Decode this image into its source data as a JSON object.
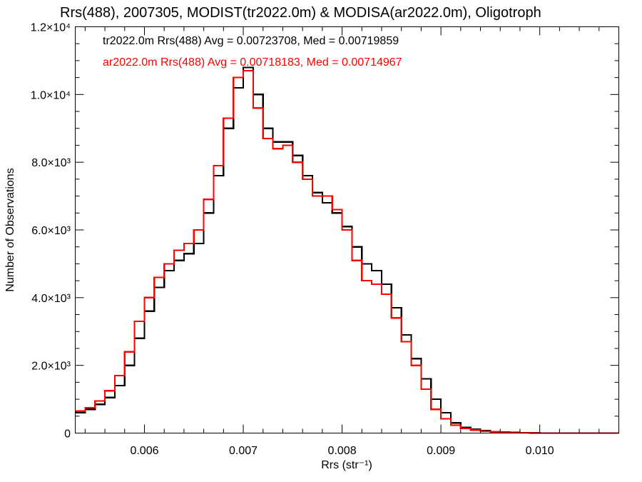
{
  "chart_data": {
    "type": "line",
    "title": "Rrs(488), 2007305, MODIST(tr2022.0m) & MODISA(ar2022.0m), Oligotroph",
    "xlabel": "Rrs (str⁻¹)",
    "ylabel": "Number of Observations",
    "xlim": [
      0.0053,
      0.0108
    ],
    "ylim": [
      0,
      12000
    ],
    "grid": false,
    "x_ticks": [
      {
        "value": 0.006,
        "label": "0.006"
      },
      {
        "value": 0.007,
        "label": "0.007"
      },
      {
        "value": 0.008,
        "label": "0.008"
      },
      {
        "value": 0.009,
        "label": "0.009"
      },
      {
        "value": 0.01,
        "label": "0.010"
      }
    ],
    "y_ticks": [
      {
        "value": 0,
        "label": "0"
      },
      {
        "value": 2000,
        "label": "2.0×10³"
      },
      {
        "value": 4000,
        "label": "4.0×10³"
      },
      {
        "value": 6000,
        "label": "6.0×10³"
      },
      {
        "value": 8000,
        "label": "8.0×10³"
      },
      {
        "value": 10000,
        "label": "1.0×10⁴"
      },
      {
        "value": 12000,
        "label": "1.2×10⁴"
      }
    ],
    "annotations": [
      {
        "text": "tr2022.0m Rrs(488) Avg = 0.00723708, Med = 0.00719859",
        "color": "#000000"
      },
      {
        "text": "ar2022.0m Rrs(488) Avg = 0.00718183, Med = 0.00714967",
        "color": "#ff0000"
      }
    ],
    "series": [
      {
        "color": "#000000",
        "x": [
          0.0053,
          0.0054,
          0.0055,
          0.0056,
          0.0057,
          0.0058,
          0.0059,
          0.006,
          0.0061,
          0.0062,
          0.0063,
          0.0064,
          0.0065,
          0.0066,
          0.0067,
          0.0068,
          0.0069,
          0.007,
          0.0071,
          0.0072,
          0.0073,
          0.0074,
          0.0075,
          0.0076,
          0.0077,
          0.0078,
          0.0079,
          0.008,
          0.0081,
          0.0082,
          0.0083,
          0.0084,
          0.0085,
          0.0086,
          0.0087,
          0.0088,
          0.0089,
          0.009,
          0.0091,
          0.0092,
          0.0093,
          0.0094,
          0.0095,
          0.0096,
          0.0097,
          0.0098,
          0.0099,
          0.01,
          0.0101,
          0.0102,
          0.0103,
          0.0104,
          0.0105,
          0.0106,
          0.0107,
          0.0108
        ],
        "y": [
          600,
          700,
          850,
          1050,
          1400,
          2000,
          2800,
          3600,
          4300,
          4800,
          5100,
          5300,
          5600,
          6500,
          7600,
          9000,
          10200,
          10800,
          10000,
          9000,
          8600,
          8600,
          8200,
          7600,
          7100,
          6800,
          6500,
          6100,
          5500,
          5000,
          4800,
          4400,
          3700,
          2900,
          2200,
          1600,
          1000,
          600,
          300,
          170,
          110,
          70,
          40,
          25,
          15,
          10,
          5,
          3,
          2,
          1,
          1,
          0,
          0,
          0,
          0,
          0
        ]
      },
      {
        "color": "#ff0000",
        "x": [
          0.0053,
          0.0054,
          0.0055,
          0.0056,
          0.0057,
          0.0058,
          0.0059,
          0.006,
          0.0061,
          0.0062,
          0.0063,
          0.0064,
          0.0065,
          0.0066,
          0.0067,
          0.0068,
          0.0069,
          0.007,
          0.0071,
          0.0072,
          0.0073,
          0.0074,
          0.0075,
          0.0076,
          0.0077,
          0.0078,
          0.0079,
          0.008,
          0.0081,
          0.0082,
          0.0083,
          0.0084,
          0.0085,
          0.0086,
          0.0087,
          0.0088,
          0.0089,
          0.009,
          0.0091,
          0.0092,
          0.0093,
          0.0094,
          0.0095,
          0.0096,
          0.0097,
          0.0098,
          0.0099,
          0.01,
          0.0101,
          0.0102,
          0.0103,
          0.0104,
          0.0105,
          0.0106,
          0.0107,
          0.0108
        ],
        "y": [
          650,
          750,
          950,
          1250,
          1700,
          2400,
          3300,
          4000,
          4600,
          5000,
          5400,
          5600,
          6000,
          6900,
          7900,
          9300,
          10500,
          10700,
          9600,
          8700,
          8400,
          8500,
          8000,
          7500,
          7000,
          7000,
          6600,
          6000,
          5100,
          4500,
          4400,
          4100,
          3400,
          2700,
          2000,
          1300,
          700,
          420,
          230,
          140,
          90,
          55,
          35,
          20,
          12,
          8,
          4,
          2,
          1,
          1,
          0,
          0,
          0,
          0,
          0,
          0
        ]
      }
    ]
  }
}
